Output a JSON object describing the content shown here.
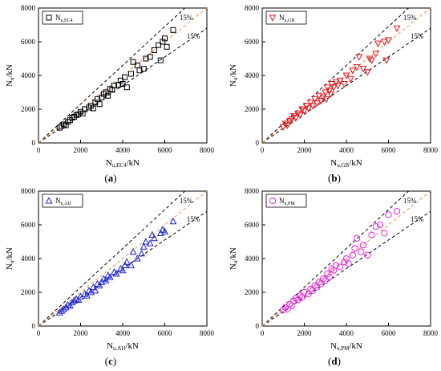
{
  "chart_data": [
    {
      "type": "scatter",
      "panel": "(a)",
      "caption_letter": "a",
      "legend": {
        "main": "N",
        "sub": "u,EC4"
      },
      "xlabel": {
        "main": "N",
        "sub": "u,EC4",
        "suffix": "/kN"
      },
      "ylabel": {
        "main": "N",
        "sub": "u",
        "suffix": "/kN"
      },
      "xlim": [
        0,
        8000
      ],
      "ylim": [
        0,
        8000
      ],
      "x_ticks": [
        0,
        2000,
        4000,
        6000,
        8000
      ],
      "y_ticks": [
        0,
        2000,
        4000,
        6000,
        8000
      ],
      "bounds_label": "15%",
      "bounds": [
        1.15,
        0.85
      ],
      "marker": "square",
      "color": "#000000",
      "series": [
        {
          "name": "N_u,EC4",
          "points": [
            [
              1000,
              900
            ],
            [
              1100,
              1000
            ],
            [
              1200,
              1100
            ],
            [
              1300,
              1050
            ],
            [
              1400,
              1250
            ],
            [
              1500,
              1350
            ],
            [
              1600,
              1500
            ],
            [
              1700,
              1550
            ],
            [
              1800,
              1650
            ],
            [
              1900,
              1700
            ],
            [
              2000,
              1850
            ],
            [
              2100,
              1750
            ],
            [
              2200,
              2000
            ],
            [
              2400,
              2100
            ],
            [
              2500,
              2200
            ],
            [
              2600,
              2050
            ],
            [
              2700,
              2400
            ],
            [
              2800,
              2600
            ],
            [
              2900,
              2300
            ],
            [
              3000,
              2700
            ],
            [
              3100,
              2900
            ],
            [
              3200,
              3000
            ],
            [
              3300,
              2800
            ],
            [
              3400,
              3200
            ],
            [
              3500,
              3150
            ],
            [
              3600,
              3400
            ],
            [
              3800,
              3450
            ],
            [
              3900,
              3700
            ],
            [
              4000,
              3500
            ],
            [
              4100,
              3900
            ],
            [
              4200,
              3300
            ],
            [
              4400,
              4100
            ],
            [
              4500,
              4800
            ],
            [
              4700,
              4600
            ],
            [
              4800,
              4300
            ],
            [
              5000,
              4400
            ],
            [
              5100,
              5000
            ],
            [
              5300,
              5100
            ],
            [
              5500,
              5500
            ],
            [
              5700,
              5800
            ],
            [
              5800,
              4900
            ],
            [
              5900,
              6000
            ],
            [
              6000,
              6200
            ],
            [
              6100,
              5700
            ],
            [
              6400,
              6700
            ]
          ]
        }
      ]
    },
    {
      "type": "scatter",
      "panel": "(b)",
      "caption_letter": "b",
      "legend": {
        "main": "N",
        "sub": "u,GB"
      },
      "xlabel": {
        "main": "N",
        "sub": "u,GB",
        "suffix": "/kN"
      },
      "ylabel": {
        "main": "N",
        "sub": "u",
        "suffix": "/kN"
      },
      "xlim": [
        0,
        8000
      ],
      "ylim": [
        0,
        8000
      ],
      "x_ticks": [
        0,
        2000,
        4000,
        6000,
        8000
      ],
      "y_ticks": [
        0,
        2000,
        4000,
        6000,
        8000
      ],
      "bounds_label": "15%",
      "bounds": [
        1.15,
        0.85
      ],
      "marker": "triangle-down",
      "color": "#e8141b",
      "series": [
        {
          "name": "N_u,GB",
          "points": [
            [
              1000,
              950
            ],
            [
              1100,
              1150
            ],
            [
              1200,
              1050
            ],
            [
              1300,
              1300
            ],
            [
              1400,
              1400
            ],
            [
              1500,
              1600
            ],
            [
              1600,
              1500
            ],
            [
              1700,
              1750
            ],
            [
              1800,
              1650
            ],
            [
              1900,
              2000
            ],
            [
              2000,
              1900
            ],
            [
              2100,
              2200
            ],
            [
              2200,
              2050
            ],
            [
              2300,
              2400
            ],
            [
              2400,
              2200
            ],
            [
              2500,
              2600
            ],
            [
              2600,
              2350
            ],
            [
              2700,
              2800
            ],
            [
              2800,
              2500
            ],
            [
              2900,
              2700
            ],
            [
              3000,
              3000
            ],
            [
              3050,
              2600
            ],
            [
              3100,
              3300
            ],
            [
              3200,
              3100
            ],
            [
              3250,
              2900
            ],
            [
              3300,
              3500
            ],
            [
              3400,
              3300
            ],
            [
              3500,
              3600
            ],
            [
              3600,
              3400
            ],
            [
              3700,
              3700
            ],
            [
              3900,
              3500
            ],
            [
              4000,
              4000
            ],
            [
              4200,
              3800
            ],
            [
              4300,
              4300
            ],
            [
              4500,
              4500
            ],
            [
              4600,
              5100
            ],
            [
              4800,
              4400
            ],
            [
              5000,
              4200
            ],
            [
              5100,
              5000
            ],
            [
              5200,
              4900
            ],
            [
              5400,
              5300
            ],
            [
              5500,
              5900
            ],
            [
              5800,
              6000
            ],
            [
              5900,
              4900
            ],
            [
              6000,
              6100
            ],
            [
              6400,
              6800
            ]
          ]
        }
      ]
    },
    {
      "type": "scatter",
      "panel": "(c)",
      "caption_letter": "c",
      "legend": {
        "main": "N",
        "sub": "u,AIJ"
      },
      "xlabel": {
        "main": "N",
        "sub": "u,AIJ",
        "suffix": "/kN"
      },
      "ylabel": {
        "main": "N",
        "sub": "u",
        "suffix": "/kN"
      },
      "xlim": [
        0,
        8000
      ],
      "ylim": [
        0,
        8000
      ],
      "x_ticks": [
        0,
        2000,
        4000,
        6000,
        8000
      ],
      "y_ticks": [
        0,
        2000,
        4000,
        6000,
        8000
      ],
      "bounds_label": "15%",
      "bounds": [
        1.15,
        0.85
      ],
      "marker": "triangle-up",
      "color": "#1a21d6",
      "series": [
        {
          "name": "N_u,AIJ",
          "points": [
            [
              1000,
              800
            ],
            [
              1100,
              900
            ],
            [
              1200,
              1000
            ],
            [
              1300,
              1100
            ],
            [
              1400,
              1250
            ],
            [
              1500,
              1200
            ],
            [
              1600,
              1400
            ],
            [
              1700,
              1500
            ],
            [
              1800,
              1600
            ],
            [
              1900,
              1550
            ],
            [
              2000,
              1750
            ],
            [
              2200,
              1900
            ],
            [
              2300,
              1800
            ],
            [
              2400,
              2100
            ],
            [
              2500,
              2000
            ],
            [
              2600,
              2300
            ],
            [
              2700,
              2100
            ],
            [
              2800,
              2500
            ],
            [
              2900,
              2400
            ],
            [
              3000,
              2600
            ],
            [
              3100,
              2800
            ],
            [
              3200,
              2700
            ],
            [
              3300,
              3000
            ],
            [
              3400,
              2900
            ],
            [
              3600,
              3200
            ],
            [
              3700,
              3100
            ],
            [
              3900,
              3400
            ],
            [
              4000,
              3300
            ],
            [
              4100,
              3600
            ],
            [
              4200,
              3800
            ],
            [
              4400,
              3600
            ],
            [
              4500,
              4400
            ],
            [
              4700,
              4000
            ],
            [
              4900,
              4300
            ],
            [
              5000,
              4700
            ],
            [
              5100,
              5000
            ],
            [
              5300,
              4900
            ],
            [
              5400,
              5400
            ],
            [
              5500,
              5200
            ],
            [
              5800,
              5500
            ],
            [
              5900,
              5700
            ],
            [
              6000,
              5600
            ],
            [
              6400,
              6200
            ]
          ]
        }
      ]
    },
    {
      "type": "scatter",
      "panel": "(d)",
      "caption_letter": "d",
      "legend": {
        "main": "N",
        "sub": "u,PM"
      },
      "xlabel": {
        "main": "N",
        "sub": "u,PM",
        "suffix": "/kN"
      },
      "ylabel": {
        "main": "N",
        "sub": "u",
        "suffix": "/kN"
      },
      "xlim": [
        0,
        8000
      ],
      "ylim": [
        0,
        8000
      ],
      "x_ticks": [
        0,
        2000,
        4000,
        6000,
        8000
      ],
      "y_ticks": [
        0,
        2000,
        4000,
        6000,
        8000
      ],
      "bounds_label": "15%",
      "bounds": [
        1.15,
        0.85
      ],
      "marker": "circle",
      "color": "#e81fe0",
      "series": [
        {
          "name": "N_u,PM",
          "points": [
            [
              1000,
              950
            ],
            [
              1100,
              1100
            ],
            [
              1200,
              1000
            ],
            [
              1300,
              1300
            ],
            [
              1400,
              1200
            ],
            [
              1500,
              1500
            ],
            [
              1600,
              1650
            ],
            [
              1700,
              1550
            ],
            [
              1800,
              1800
            ],
            [
              1900,
              1700
            ],
            [
              2000,
              2000
            ],
            [
              2200,
              1900
            ],
            [
              2300,
              2200
            ],
            [
              2400,
              2100
            ],
            [
              2500,
              2400
            ],
            [
              2600,
              2300
            ],
            [
              2700,
              2600
            ],
            [
              2800,
              2500
            ],
            [
              2900,
              2800
            ],
            [
              3000,
              2700
            ],
            [
              3100,
              3100
            ],
            [
              3200,
              2900
            ],
            [
              3300,
              3400
            ],
            [
              3400,
              3300
            ],
            [
              3500,
              3600
            ],
            [
              3700,
              3500
            ],
            [
              3900,
              3800
            ],
            [
              4000,
              4000
            ],
            [
              4100,
              3700
            ],
            [
              4300,
              4200
            ],
            [
              4400,
              4600
            ],
            [
              4500,
              5200
            ],
            [
              4700,
              4400
            ],
            [
              4800,
              4800
            ],
            [
              5000,
              4200
            ],
            [
              5200,
              5400
            ],
            [
              5400,
              5900
            ],
            [
              5600,
              6000
            ],
            [
              5800,
              5500
            ],
            [
              6000,
              6600
            ],
            [
              6400,
              6800
            ]
          ]
        }
      ]
    }
  ]
}
